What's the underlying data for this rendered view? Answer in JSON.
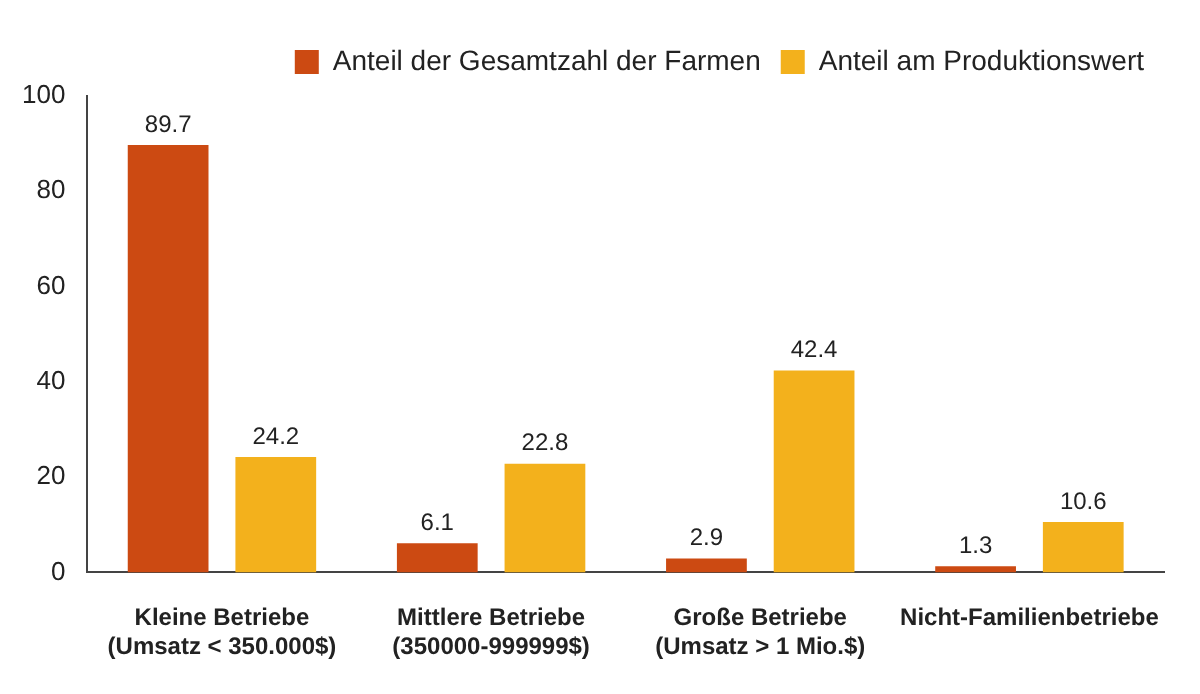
{
  "chart_data": {
    "type": "bar",
    "categories": [
      "Kleine Betriebe\n(Umsatz < 350.000$)",
      "Mittlere Betriebe\n(350000-999999$)",
      "Große Betriebe\n(Umsatz > 1 Mio.$)",
      "Nicht-Familienbetriebe"
    ],
    "series": [
      {
        "name": "Anteil der Gesamtzahl der Farmen",
        "color": "#cc4a12",
        "values": [
          89.7,
          6.1,
          2.9,
          1.3
        ]
      },
      {
        "name": "Anteil am Produktionswert",
        "color": "#f3b11c",
        "values": [
          24.2,
          22.8,
          42.4,
          10.6
        ]
      }
    ],
    "ylim": [
      0,
      100
    ],
    "yticks": [
      0,
      20,
      40,
      60,
      80,
      100
    ],
    "grid": false,
    "legend": "top right",
    "data_labels": true
  }
}
